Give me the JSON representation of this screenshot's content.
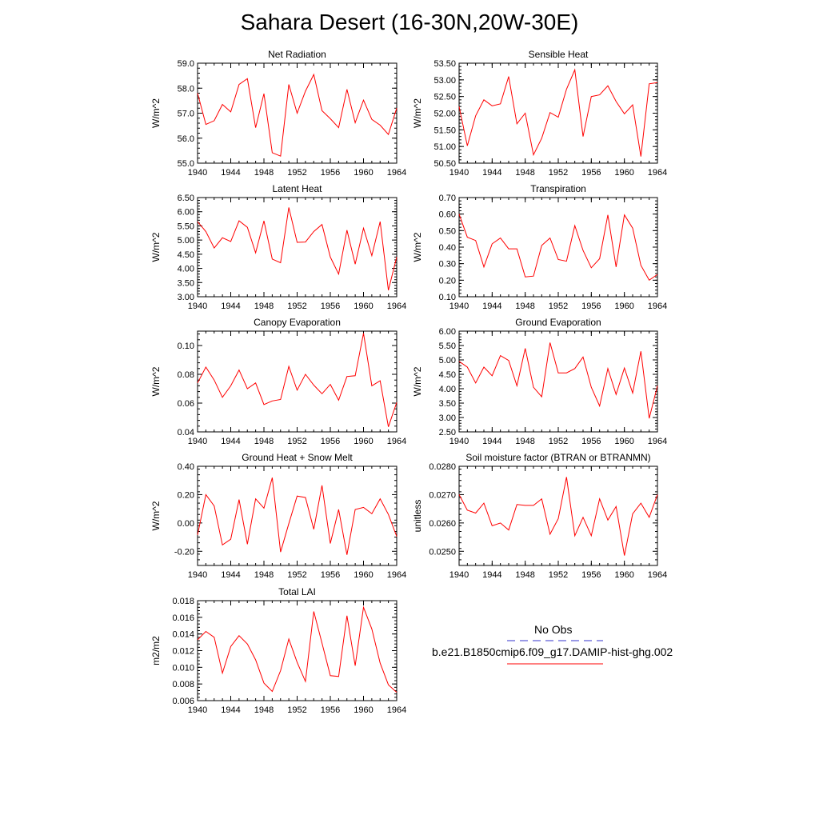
{
  "title": "Sahara Desert (16-30N,20W-30E)",
  "colors": {
    "model": "#ff0000",
    "obs": "#3333cc",
    "axis": "#000000"
  },
  "legend": {
    "obs_label": "No Obs",
    "model_label": "b.e21.B1850cmip6.f09_g17.DAMIP-hist-ghg.002"
  },
  "chart_data": [
    {
      "type": "line",
      "title": "Net Radiation",
      "ylabel": "W/m^2",
      "xlim": [
        1940,
        1964
      ],
      "ylim": [
        55.0,
        59.0
      ],
      "xticks": [
        "1940",
        "1944",
        "1948",
        "1952",
        "1956",
        "1960",
        "1964"
      ],
      "yticks": [
        "55.0",
        "56.0",
        "57.0",
        "58.0",
        "59.0"
      ],
      "x": [
        1940,
        1941,
        1942,
        1943,
        1944,
        1945,
        1946,
        1947,
        1948,
        1949,
        1950,
        1951,
        1952,
        1953,
        1954,
        1955,
        1956,
        1957,
        1958,
        1959,
        1960,
        1961,
        1962,
        1963,
        1964
      ],
      "values": [
        57.8,
        56.55,
        56.7,
        57.35,
        57.05,
        58.15,
        58.38,
        56.42,
        57.78,
        55.42,
        55.28,
        58.15,
        57.0,
        57.88,
        58.55,
        57.1,
        56.78,
        56.42,
        57.95,
        56.62,
        57.52,
        56.75,
        56.52,
        56.15,
        57.2
      ]
    },
    {
      "type": "line",
      "title": "Sensible Heat",
      "ylabel": "W/m^2",
      "xlim": [
        1940,
        1964
      ],
      "ylim": [
        50.5,
        53.5
      ],
      "xticks": [
        "1940",
        "1944",
        "1948",
        "1952",
        "1956",
        "1960",
        "1964"
      ],
      "yticks": [
        "50.50",
        "51.00",
        "51.50",
        "52.00",
        "52.50",
        "53.00",
        "53.50"
      ],
      "x": [
        1940,
        1941,
        1942,
        1943,
        1944,
        1945,
        1946,
        1947,
        1948,
        1949,
        1950,
        1951,
        1952,
        1953,
        1954,
        1955,
        1956,
        1957,
        1958,
        1959,
        1960,
        1961,
        1962,
        1963,
        1964
      ],
      "values": [
        52.2,
        51.02,
        51.92,
        52.4,
        52.22,
        52.28,
        53.1,
        51.68,
        52.0,
        50.75,
        51.25,
        52.02,
        51.88,
        52.72,
        53.3,
        51.3,
        52.5,
        52.55,
        52.82,
        52.35,
        51.98,
        52.25,
        50.7,
        52.88,
        52.92
      ]
    },
    {
      "type": "line",
      "title": "Latent Heat",
      "ylabel": "W/m^2",
      "xlim": [
        1940,
        1964
      ],
      "ylim": [
        3.0,
        6.5
      ],
      "xticks": [
        "1940",
        "1944",
        "1948",
        "1952",
        "1956",
        "1960",
        "1964"
      ],
      "yticks": [
        "3.00",
        "3.50",
        "4.00",
        "4.50",
        "5.00",
        "5.50",
        "6.00",
        "6.50"
      ],
      "x": [
        1940,
        1941,
        1942,
        1943,
        1944,
        1945,
        1946,
        1947,
        1948,
        1949,
        1950,
        1951,
        1952,
        1953,
        1954,
        1955,
        1956,
        1957,
        1958,
        1959,
        1960,
        1961,
        1962,
        1963,
        1964
      ],
      "values": [
        5.65,
        5.3,
        4.72,
        5.08,
        4.95,
        5.68,
        5.45,
        4.55,
        5.68,
        4.33,
        4.2,
        6.15,
        4.92,
        4.93,
        5.3,
        5.55,
        4.4,
        3.8,
        5.35,
        4.15,
        5.42,
        4.45,
        5.65,
        3.23,
        4.4
      ]
    },
    {
      "type": "line",
      "title": "Transpiration",
      "ylabel": "W/m^2",
      "xlim": [
        1940,
        1964
      ],
      "ylim": [
        0.1,
        0.7
      ],
      "xticks": [
        "1940",
        "1944",
        "1948",
        "1952",
        "1956",
        "1960",
        "1964"
      ],
      "yticks": [
        "0.10",
        "0.20",
        "0.30",
        "0.40",
        "0.50",
        "0.60",
        "0.70"
      ],
      "x": [
        1940,
        1941,
        1942,
        1943,
        1944,
        1945,
        1946,
        1947,
        1948,
        1949,
        1950,
        1951,
        1952,
        1953,
        1954,
        1955,
        1956,
        1957,
        1958,
        1959,
        1960,
        1961,
        1962,
        1963,
        1964
      ],
      "values": [
        0.6,
        0.46,
        0.44,
        0.28,
        0.42,
        0.455,
        0.39,
        0.39,
        0.22,
        0.225,
        0.41,
        0.455,
        0.325,
        0.315,
        0.53,
        0.38,
        0.275,
        0.33,
        0.595,
        0.28,
        0.595,
        0.515,
        0.29,
        0.2,
        0.235
      ]
    },
    {
      "type": "line",
      "title": "Canopy Evaporation",
      "ylabel": "W/m^2",
      "xlim": [
        1940,
        1964
      ],
      "ylim": [
        0.04,
        0.11
      ],
      "xticks": [
        "1940",
        "1944",
        "1948",
        "1952",
        "1956",
        "1960",
        "1964"
      ],
      "yticks": [
        "0.04",
        "0.06",
        "0.08",
        "0.10"
      ],
      "x": [
        1940,
        1941,
        1942,
        1943,
        1944,
        1945,
        1946,
        1947,
        1948,
        1949,
        1950,
        1951,
        1952,
        1953,
        1954,
        1955,
        1956,
        1957,
        1958,
        1959,
        1960,
        1961,
        1962,
        1963,
        1964
      ],
      "values": [
        0.074,
        0.085,
        0.076,
        0.064,
        0.072,
        0.083,
        0.07,
        0.074,
        0.059,
        0.0615,
        0.0625,
        0.0855,
        0.069,
        0.08,
        0.0725,
        0.0665,
        0.073,
        0.062,
        0.0785,
        0.079,
        0.1085,
        0.072,
        0.0755,
        0.0435,
        0.0605
      ]
    },
    {
      "type": "line",
      "title": "Ground Evaporation",
      "ylabel": "W/m^2",
      "xlim": [
        1940,
        1964
      ],
      "ylim": [
        2.5,
        6.0
      ],
      "xticks": [
        "1940",
        "1944",
        "1948",
        "1952",
        "1956",
        "1960",
        "1964"
      ],
      "yticks": [
        "2.50",
        "3.00",
        "3.50",
        "4.00",
        "4.50",
        "5.00",
        "5.50",
        "6.00"
      ],
      "x": [
        1940,
        1941,
        1942,
        1943,
        1944,
        1945,
        1946,
        1947,
        1948,
        1949,
        1950,
        1951,
        1952,
        1953,
        1954,
        1955,
        1956,
        1957,
        1958,
        1959,
        1960,
        1961,
        1962,
        1963,
        1964
      ],
      "values": [
        4.95,
        4.75,
        4.2,
        4.75,
        4.45,
        5.15,
        4.98,
        4.1,
        5.4,
        4.05,
        3.72,
        5.6,
        4.55,
        4.55,
        4.7,
        5.1,
        4.05,
        3.4,
        4.7,
        3.8,
        4.72,
        3.85,
        5.3,
        2.97,
        4.1
      ]
    },
    {
      "type": "line",
      "title": "Ground Heat + Snow Melt",
      "ylabel": "W/m^2",
      "xlim": [
        1940,
        1964
      ],
      "ylim": [
        -0.3,
        0.4
      ],
      "xticks": [
        "1940",
        "1944",
        "1948",
        "1952",
        "1956",
        "1960",
        "1964"
      ],
      "yticks": [
        "-0.20",
        "0.00",
        "0.20",
        "0.40"
      ],
      "x": [
        1940,
        1941,
        1942,
        1943,
        1944,
        1945,
        1946,
        1947,
        1948,
        1949,
        1950,
        1951,
        1952,
        1953,
        1954,
        1955,
        1956,
        1957,
        1958,
        1959,
        1960,
        1961,
        1962,
        1963,
        1964
      ],
      "values": [
        -0.085,
        0.2,
        0.12,
        -0.155,
        -0.115,
        0.165,
        -0.15,
        0.17,
        0.105,
        0.32,
        -0.205,
        -0.005,
        0.19,
        0.18,
        -0.045,
        0.265,
        -0.145,
        0.095,
        -0.225,
        0.095,
        0.11,
        0.065,
        0.17,
        0.06,
        -0.095
      ]
    },
    {
      "type": "line",
      "title": "Soil moisture factor (BTRAN or BTRANMN)",
      "ylabel": "unitless",
      "xlim": [
        1940,
        1964
      ],
      "ylim": [
        0.0245,
        0.028
      ],
      "xticks": [
        "1940",
        "1944",
        "1948",
        "1952",
        "1956",
        "1960",
        "1964"
      ],
      "yticks": [
        "0.0250",
        "0.0260",
        "0.0270",
        "0.0280"
      ],
      "x": [
        1940,
        1941,
        1942,
        1943,
        1944,
        1945,
        1946,
        1947,
        1948,
        1949,
        1950,
        1951,
        1952,
        1953,
        1954,
        1955,
        1956,
        1957,
        1958,
        1959,
        1960,
        1961,
        1962,
        1963,
        1964
      ],
      "values": [
        0.027,
        0.02645,
        0.02635,
        0.0267,
        0.0259,
        0.026,
        0.02575,
        0.02665,
        0.02662,
        0.02662,
        0.02685,
        0.0256,
        0.02615,
        0.02762,
        0.02555,
        0.0262,
        0.02555,
        0.02685,
        0.0261,
        0.02658,
        0.02485,
        0.02632,
        0.0267,
        0.0262,
        0.027
      ]
    },
    {
      "type": "line",
      "title": "Total LAI",
      "ylabel": "m2/m2",
      "xlim": [
        1940,
        1964
      ],
      "ylim": [
        0.006,
        0.018
      ],
      "xticks": [
        "1940",
        "1944",
        "1948",
        "1952",
        "1956",
        "1960",
        "1964"
      ],
      "yticks": [
        "0.006",
        "0.008",
        "0.010",
        "0.012",
        "0.014",
        "0.016",
        "0.018"
      ],
      "x": [
        1940,
        1941,
        1942,
        1943,
        1944,
        1945,
        1946,
        1947,
        1948,
        1949,
        1950,
        1951,
        1952,
        1953,
        1954,
        1955,
        1956,
        1957,
        1958,
        1959,
        1960,
        1961,
        1962,
        1963,
        1964
      ],
      "values": [
        0.0133,
        0.0143,
        0.0136,
        0.0093,
        0.0125,
        0.0138,
        0.0128,
        0.0109,
        0.0081,
        0.0071,
        0.0096,
        0.0134,
        0.0106,
        0.0083,
        0.0167,
        0.0129,
        0.009,
        0.0089,
        0.0162,
        0.0102,
        0.0172,
        0.0146,
        0.0105,
        0.0079,
        0.007
      ]
    }
  ]
}
